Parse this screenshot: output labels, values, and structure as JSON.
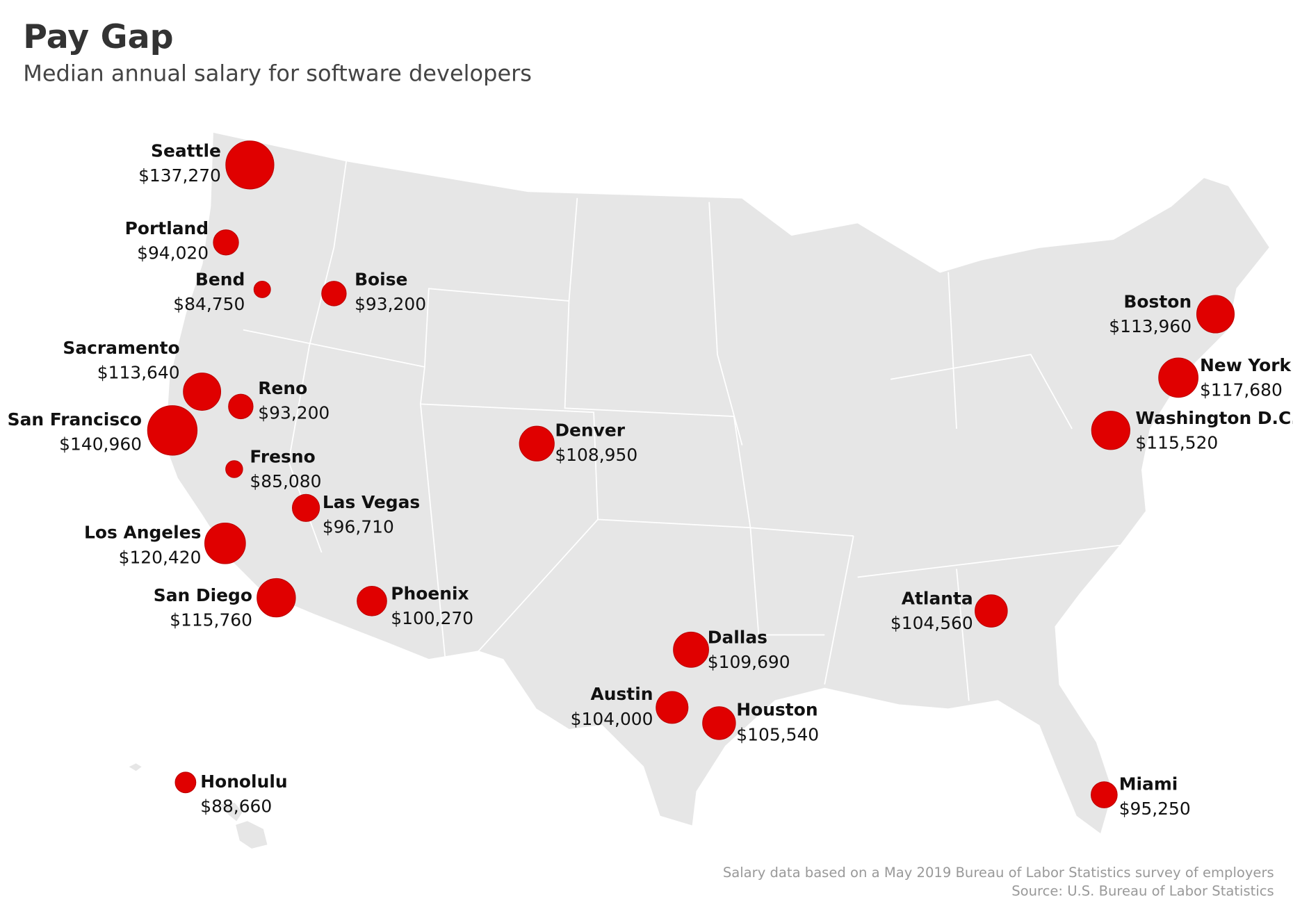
{
  "title": "Pay Gap",
  "subtitle": "Median annual salary for software developers",
  "cities": [
    {
      "name": "Seattle",
      "value": 137270,
      "value_label": "$137,270"
    },
    {
      "name": "Portland",
      "value": 94020,
      "value_label": "$94,020"
    },
    {
      "name": "Bend",
      "value": 84750,
      "value_label": "$84,750"
    },
    {
      "name": "Boise",
      "value": 93200,
      "value_label": "$93,200"
    },
    {
      "name": "Sacramento",
      "value": 113640,
      "value_label": "$113,640"
    },
    {
      "name": "Reno",
      "value": 93200,
      "value_label": "$93,200"
    },
    {
      "name": "San Francisco",
      "value": 140960,
      "value_label": "$140,960"
    },
    {
      "name": "Fresno",
      "value": 85080,
      "value_label": "$85,080"
    },
    {
      "name": "Las Vegas",
      "value": 96710,
      "value_label": "$96,710"
    },
    {
      "name": "Los Angeles",
      "value": 120420,
      "value_label": "$120,420"
    },
    {
      "name": "San Diego",
      "value": 115760,
      "value_label": "$115,760"
    },
    {
      "name": "Phoenix",
      "value": 100270,
      "value_label": "$100,270"
    },
    {
      "name": "Denver",
      "value": 108950,
      "value_label": "$108,950"
    },
    {
      "name": "Dallas",
      "value": 109690,
      "value_label": "$109,690"
    },
    {
      "name": "Austin",
      "value": 104000,
      "value_label": "$104,000"
    },
    {
      "name": "Houston",
      "value": 105540,
      "value_label": "$105,540"
    },
    {
      "name": "Atlanta",
      "value": 104560,
      "value_label": "$104,560"
    },
    {
      "name": "Boston",
      "value": 113960,
      "value_label": "$113,960"
    },
    {
      "name": "New York",
      "value": 117680,
      "value_label": "$117,680"
    },
    {
      "name": "Washington D.C.",
      "value": 115520,
      "value_label": "$115,520"
    },
    {
      "name": "Miami",
      "value": 95250,
      "value_label": "$95,250"
    },
    {
      "name": "Honolulu",
      "value": 88660,
      "value_label": "$88,660"
    }
  ],
  "bubble_color": "#e00000",
  "notes": [
    "Salary data based on a May 2019 Bureau of Labor Statistics survey of employers",
    "Source: U.S. Bureau of Labor Statistics"
  ]
}
